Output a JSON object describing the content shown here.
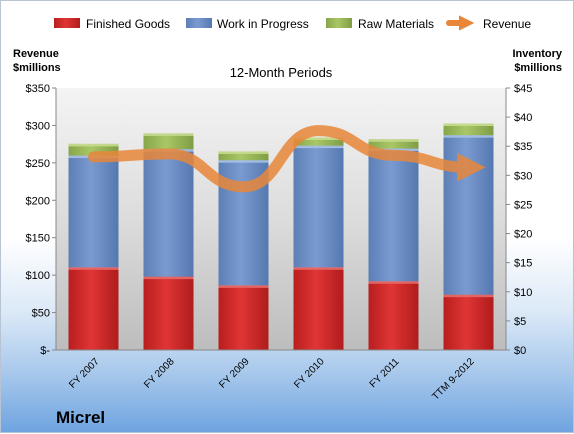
{
  "chart_data": {
    "type": "bar",
    "subtitle": "12-Month Periods",
    "company": "Micrel",
    "left_axis_label": [
      "Revenue",
      "$millions"
    ],
    "right_axis_label": [
      "Inventory",
      "$millions"
    ],
    "categories": [
      "FY 2007",
      "FY 2008",
      "FY 2009",
      "FY 2010",
      "FY 2011",
      "TTM 9-2012"
    ],
    "stacked_series": [
      {
        "name": "Finished Goods",
        "axis": "right",
        "color": "#d92b2b",
        "values": [
          14.2,
          12.6,
          11.1,
          14.2,
          11.8,
          9.5
        ]
      },
      {
        "name": "Work in Progress",
        "axis": "right",
        "color": "#6f93c9",
        "values": [
          19.2,
          21.9,
          21.5,
          20.9,
          22.8,
          27.4
        ]
      },
      {
        "name": "Raw Materials",
        "axis": "right",
        "color": "#9bbb59",
        "values": [
          2.0,
          2.7,
          1.5,
          1.4,
          1.6,
          2.0
        ]
      }
    ],
    "line_series": {
      "name": "Revenue",
      "axis": "left",
      "color": "#e8873a",
      "values": [
        258,
        262,
        218,
        293,
        260,
        244
      ]
    },
    "left_axis": {
      "min": 0,
      "max": 350,
      "step": 50,
      "tick_labels": [
        "$-",
        "$50",
        "$100",
        "$150",
        "$200",
        "$250",
        "$300",
        "$350"
      ]
    },
    "right_axis": {
      "min": 0,
      "max": 45,
      "step": 5,
      "tick_labels": [
        "$0",
        "$5",
        "$10",
        "$15",
        "$20",
        "$25",
        "$30",
        "$35",
        "$40",
        "$45"
      ]
    },
    "legend_position": "top",
    "grid": false
  }
}
